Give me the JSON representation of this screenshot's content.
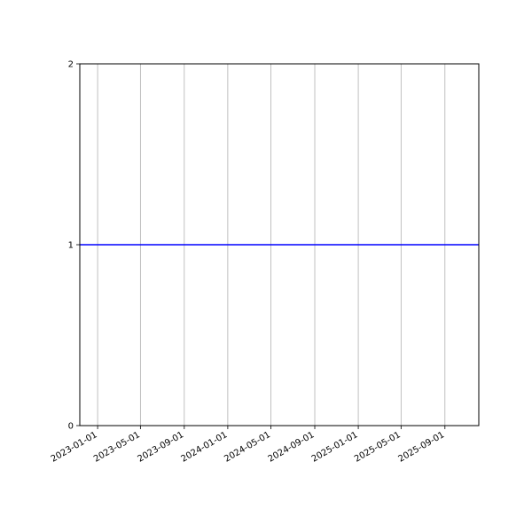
{
  "chart_data": {
    "type": "line",
    "title": "",
    "xlabel": "",
    "ylabel": "",
    "x_axis_type": "date",
    "xlim": [
      "2022-11-12",
      "2025-12-05"
    ],
    "ylim": [
      0,
      2
    ],
    "x_ticks": [
      "2023-01-01",
      "2023-05-01",
      "2023-09-01",
      "2024-01-01",
      "2024-05-01",
      "2024-09-01",
      "2025-01-01",
      "2025-05-01",
      "2025-09-01"
    ],
    "y_ticks": [
      "0",
      "1",
      "2"
    ],
    "grid": "vertical (x-axis only)",
    "grid_color": "#b0b0b0",
    "series": [
      {
        "x": [
          "2022-11-12",
          "2025-12-05"
        ],
        "y": [
          1,
          1
        ],
        "color": "#0000ff"
      }
    ]
  }
}
